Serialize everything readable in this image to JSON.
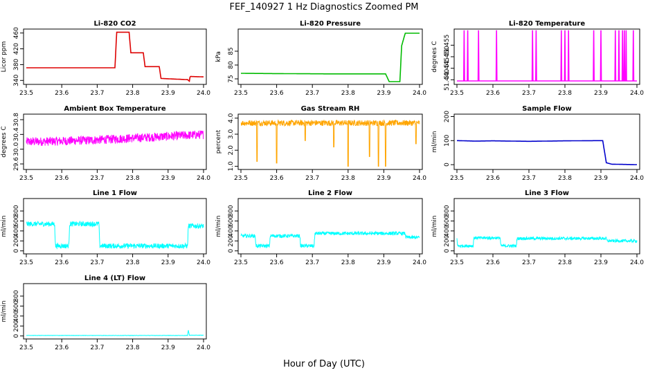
{
  "figure": {
    "title": "FEF_140927  1 Hz Diagnostics Zoomed PM",
    "xlabel": "Hour of Day (UTC)"
  },
  "chart_data": [
    {
      "type": "line",
      "id": "co2",
      "title": "Li-820 CO2",
      "ylabel": "Licor ppm",
      "color": "#dd0000",
      "xlim": [
        23.5,
        24.0
      ],
      "xticks": [
        "23.5",
        "23.6",
        "23.7",
        "23.8",
        "23.9",
        "24.0"
      ],
      "ylim": [
        330,
        470
      ],
      "yticks": [
        "340",
        "380",
        "420",
        "460"
      ],
      "x": [
        23.5,
        23.75,
        23.755,
        23.79,
        23.795,
        23.83,
        23.835,
        23.875,
        23.88,
        23.955,
        23.96,
        23.962,
        24.0
      ],
      "y": [
        372,
        372,
        462,
        462,
        410,
        410,
        375,
        375,
        345,
        342,
        338,
        350,
        349
      ]
    },
    {
      "type": "line",
      "id": "pressure",
      "title": "Li-820 Pressure",
      "ylabel": "kPa",
      "color": "#00bb00",
      "xlim": [
        23.5,
        24.0
      ],
      "xticks": [
        "23.5",
        "23.6",
        "23.7",
        "23.8",
        "23.9",
        "24.0"
      ],
      "ylim": [
        73,
        93
      ],
      "yticks": [
        "75",
        "80",
        "85"
      ],
      "x": [
        23.5,
        23.6,
        23.75,
        23.905,
        23.915,
        23.945,
        23.95,
        23.96,
        24.0
      ],
      "y": [
        77.0,
        76.9,
        76.8,
        76.8,
        74.0,
        74.0,
        87.0,
        91.5,
        91.5
      ]
    },
    {
      "type": "line",
      "id": "temperature",
      "title": "Li-820 Temperature",
      "ylabel": "degrees C",
      "color": "#ff00ff",
      "xlim": [
        23.5,
        24.0
      ],
      "xticks": [
        "23.5",
        "23.6",
        "23.7",
        "23.8",
        "23.9",
        "24.0"
      ],
      "ylim": [
        51.438,
        51.462
      ],
      "yticks": [
        "51.440",
        "51.445",
        "51.450",
        "51.455"
      ],
      "baseline": 51.4395,
      "spike_top": 51.4615,
      "spikes": [
        23.52,
        23.53,
        23.56,
        23.61,
        23.71,
        23.72,
        23.79,
        23.8,
        23.81,
        23.88,
        23.9,
        23.94,
        23.95,
        23.96,
        23.965,
        23.97,
        23.99
      ]
    },
    {
      "type": "line",
      "id": "ambient",
      "title": "Ambient Box Temperature",
      "ylabel": "degrees C",
      "color": "#ff00ff",
      "xlim": [
        23.5,
        24.0
      ],
      "xticks": [
        "23.5",
        "23.6",
        "23.7",
        "23.8",
        "23.9",
        "24.0"
      ],
      "ylim": [
        29.45,
        30.95
      ],
      "yticks": [
        "29.6",
        "30.0",
        "30.4",
        "30.8"
      ],
      "x": [
        23.5,
        23.6,
        23.7,
        23.8,
        23.9,
        24.0
      ],
      "y": [
        30.2,
        30.22,
        30.25,
        30.3,
        30.35,
        30.4
      ],
      "noise": 0.12
    },
    {
      "type": "line",
      "id": "rh",
      "title": "Gas Stream RH",
      "ylabel": "percent",
      "color": "#ffa500",
      "xlim": [
        23.5,
        24.0
      ],
      "xticks": [
        "23.5",
        "23.6",
        "23.7",
        "23.8",
        "23.9",
        "24.0"
      ],
      "ylim": [
        0.8,
        4.25
      ],
      "yticks": [
        "1.0",
        "2.0",
        "3.0",
        "4.0"
      ],
      "base": 3.7,
      "noise": 0.18,
      "dips_x": [
        23.545,
        23.6,
        23.68,
        23.76,
        23.8,
        23.86,
        23.885,
        23.905,
        23.99
      ],
      "dips_y": [
        1.3,
        1.2,
        2.6,
        2.2,
        1.0,
        1.6,
        1.0,
        1.0,
        2.4
      ]
    },
    {
      "type": "line",
      "id": "sample",
      "title": "Sample Flow",
      "ylabel": "ml/min",
      "color": "#0000cc",
      "xlim": [
        23.5,
        24.0
      ],
      "xticks": [
        "23.5",
        "23.6",
        "23.7",
        "23.8",
        "23.9",
        "24.0"
      ],
      "ylim": [
        -20,
        210
      ],
      "yticks": [
        "0",
        "100",
        "200"
      ],
      "x": [
        23.5,
        23.55,
        23.6,
        23.7,
        23.8,
        23.905,
        23.915,
        23.93,
        24.0
      ],
      "y": [
        100,
        98,
        99,
        97,
        99,
        100,
        8,
        2,
        0
      ]
    },
    {
      "type": "line",
      "id": "line1",
      "title": "Line 1 Flow",
      "ylabel": "ml/min",
      "color": "#00ffff",
      "xlim": [
        23.5,
        24.0
      ],
      "xticks": [
        "23.5",
        "23.6",
        "23.7",
        "23.8",
        "23.9",
        "24.0"
      ],
      "ylim": [
        -60,
        1050
      ],
      "yticks": [
        "0",
        "200",
        "400",
        "600",
        "800"
      ],
      "x": [
        23.5,
        23.58,
        23.582,
        23.62,
        23.622,
        23.705,
        23.707,
        23.955,
        23.957,
        24.0
      ],
      "y": [
        540,
        540,
        100,
        100,
        540,
        540,
        100,
        100,
        500,
        500
      ],
      "noise": 50
    },
    {
      "type": "line",
      "id": "line2",
      "title": "Line 2 Flow",
      "ylabel": "ml/min",
      "color": "#00ffff",
      "xlim": [
        23.5,
        24.0
      ],
      "xticks": [
        "23.5",
        "23.6",
        "23.7",
        "23.8",
        "23.9",
        "24.0"
      ],
      "ylim": [
        -60,
        1050
      ],
      "yticks": [
        "0",
        "200",
        "400",
        "600",
        "800"
      ],
      "x": [
        23.5,
        23.54,
        23.542,
        23.58,
        23.582,
        23.665,
        23.667,
        23.705,
        23.707,
        23.96,
        23.962,
        24.0
      ],
      "y": [
        300,
        300,
        100,
        100,
        300,
        300,
        100,
        100,
        350,
        350,
        270,
        270
      ],
      "noise": 35
    },
    {
      "type": "line",
      "id": "line3",
      "title": "Line 3 Flow",
      "ylabel": "ml/min",
      "color": "#00ffff",
      "xlim": [
        23.5,
        24.0
      ],
      "xticks": [
        "23.5",
        "23.6",
        "23.7",
        "23.8",
        "23.9",
        "24.0"
      ],
      "ylim": [
        -60,
        1050
      ],
      "yticks": [
        "0",
        "200",
        "400",
        "600",
        "800"
      ],
      "x": [
        23.5,
        23.502,
        23.545,
        23.547,
        23.62,
        23.622,
        23.665,
        23.667,
        23.915,
        23.917,
        24.0
      ],
      "y": [
        250,
        100,
        100,
        260,
        260,
        100,
        100,
        250,
        250,
        200,
        200
      ],
      "noise": 30
    },
    {
      "type": "line",
      "id": "line4",
      "title": "Line 4 (LT) Flow",
      "ylabel": "ml/min",
      "color": "#00ffff",
      "xlim": [
        23.5,
        24.0
      ],
      "xticks": [
        "23.5",
        "23.6",
        "23.7",
        "23.8",
        "23.9",
        "24.0"
      ],
      "ylim": [
        -60,
        1050
      ],
      "yticks": [
        "0",
        "200",
        "400",
        "600",
        "800"
      ],
      "x": [
        23.5,
        23.955,
        23.957,
        23.96,
        24.0
      ],
      "y": [
        10,
        10,
        120,
        15,
        15
      ],
      "noise": 3
    }
  ]
}
